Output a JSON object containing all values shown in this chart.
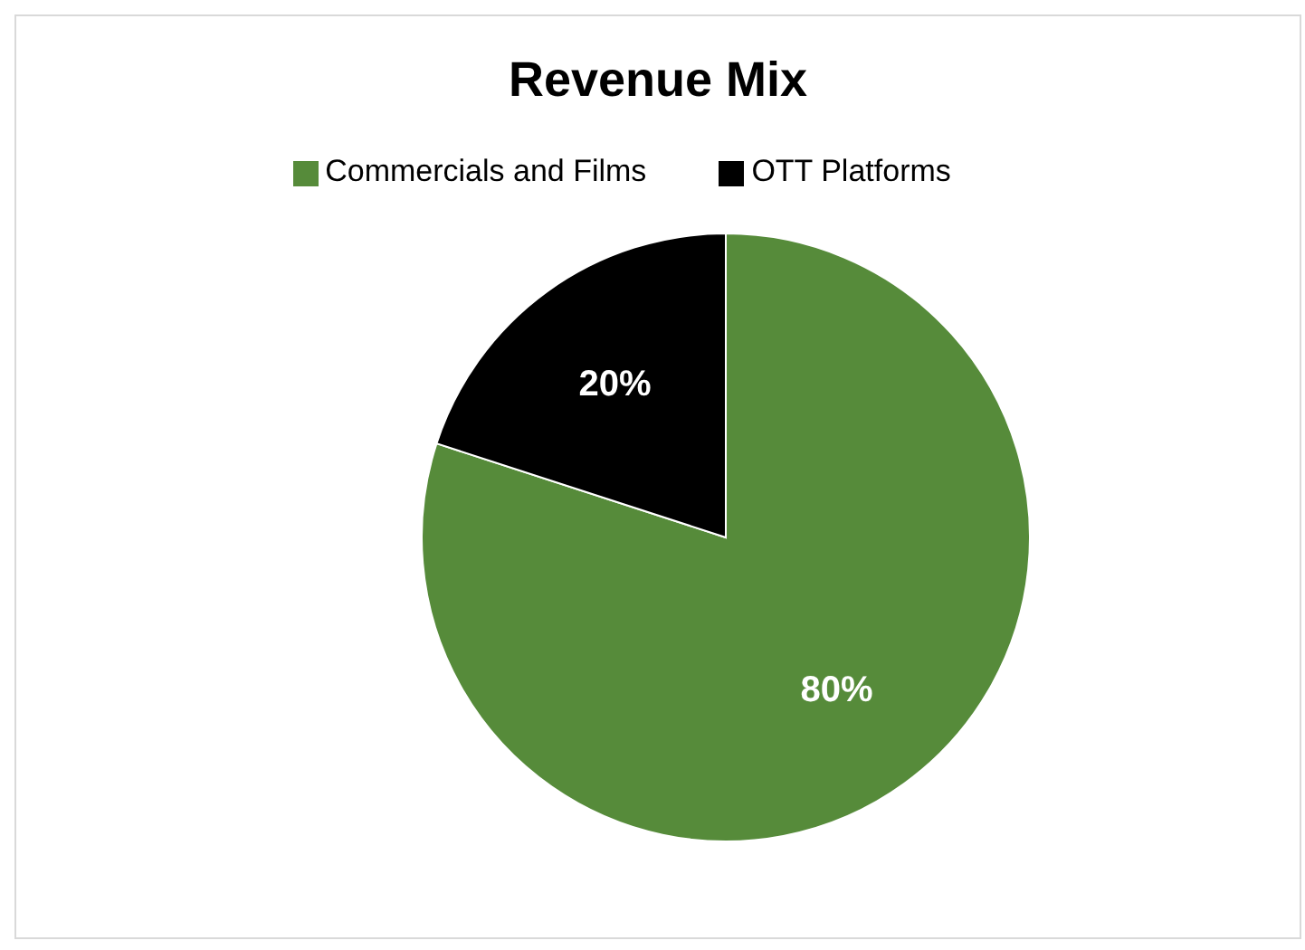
{
  "chart_data": {
    "type": "pie",
    "title": "Revenue Mix",
    "categories": [
      "Commercials and Films",
      "OTT Platforms"
    ],
    "values": [
      80,
      20
    ],
    "colors": [
      "#568b3a",
      "#000000"
    ],
    "value_labels": [
      "80%",
      "20%"
    ],
    "legend": "top"
  }
}
